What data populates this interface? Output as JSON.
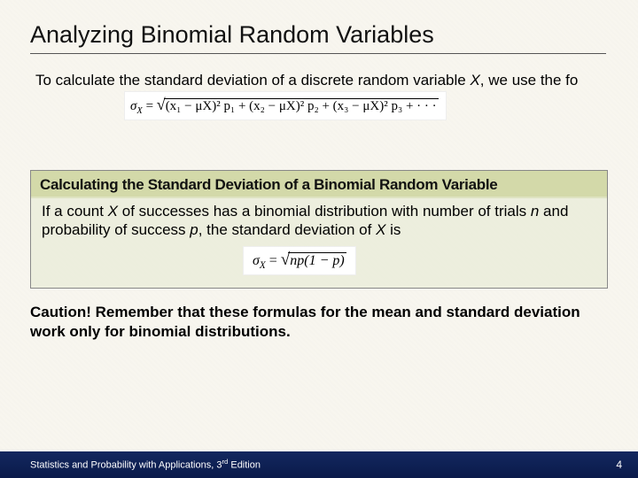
{
  "title": "Analyzing Binomial Random Variables",
  "intro_line1": "To calculate the standard deviation of a discrete random variable ",
  "intro_var": "X",
  "intro_line2": ", we use the fo",
  "formula_top": {
    "sigma": "σ",
    "subX": "X",
    "eq": " = ",
    "terms": "(x₁ − μX)² p₁ + (x₂ − μX)² p₂ + (x₃ − μX)² p₃ + · · ·"
  },
  "box_header": "Calculating the Standard Deviation of a Binomial Random Variable",
  "box_body_pre": "If a count ",
  "box_body_X": "X",
  "box_body_mid1": " of successes has a binomial distribution with number of trials ",
  "box_body_n": "n",
  "box_body_mid2": " and probability of success ",
  "box_body_p": "p",
  "box_body_mid3": ", the standard deviation of ",
  "box_body_X2": "X",
  "box_body_end": " is",
  "formula_box": {
    "sigma": "σ",
    "subX": "X",
    "eq": " = ",
    "radicand": "np(1 − p)"
  },
  "caution": "Caution! Remember that these formulas for the mean and standard deviation work only for binomial distributions.",
  "footer_text_a": "Statistics and Probability with Applications, 3",
  "footer_text_sup": "rd",
  "footer_text_b": " Edition",
  "footer_page": "4",
  "colors": {
    "bg": "#f8f6ef",
    "header_box": "#d3d9a9",
    "body_box": "rgba(230,233,210,0.6)",
    "footer": "#0a1a4a",
    "text": "#000000",
    "footer_text": "#ffffff"
  }
}
